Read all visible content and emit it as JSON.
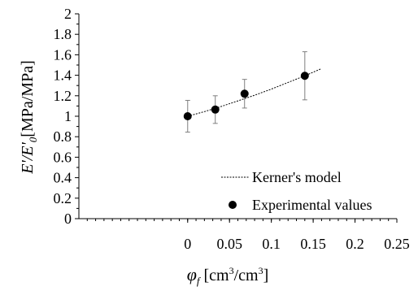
{
  "chart_data": {
    "type": "scatter",
    "x_axis": {
      "range": [
        -0.13,
        0.25
      ],
      "ticks": [
        0,
        0.05,
        0.1,
        0.15,
        0.2,
        0.25
      ],
      "tick_labels": [
        "0",
        "0.05",
        "0.1",
        "0.15",
        "0.2",
        "0.25"
      ],
      "label_symbol": "φ",
      "label_subscript": "f",
      "label_units": " [cm",
      "label_sup1": "3",
      "label_mid": "/cm",
      "label_sup2": "3",
      "label_close": "]"
    },
    "y_axis": {
      "range": [
        0,
        2
      ],
      "ticks": [
        0,
        0.2,
        0.4,
        0.6,
        0.8,
        1,
        1.2,
        1.4,
        1.6,
        1.8,
        2
      ],
      "tick_labels": [
        "0",
        "0.2",
        "0.4",
        "0.6",
        "0.8",
        "1",
        "1.2",
        "1.4",
        "1.6",
        "1.8",
        "2"
      ],
      "label_main": "E'/E'",
      "label_subscript": "0",
      "label_units": "[MPa/MPa]"
    },
    "grid": false,
    "series": [
      {
        "name": "Kerner's model",
        "type": "line",
        "style": "dashed",
        "x": [
          0,
          0.02,
          0.04,
          0.06,
          0.08,
          0.1,
          0.12,
          0.14,
          0.16
        ],
        "y": [
          1.0,
          1.045,
          1.095,
          1.15,
          1.205,
          1.265,
          1.33,
          1.395,
          1.465
        ]
      },
      {
        "name": "Experimental values",
        "type": "scatter",
        "x": [
          0,
          0.033,
          0.068,
          0.14
        ],
        "y": [
          1.0,
          1.065,
          1.22,
          1.395
        ],
        "error": [
          0.155,
          0.135,
          0.14,
          0.235
        ]
      }
    ],
    "legend": {
      "position": "bottom-right",
      "entries": [
        "Kerner's model",
        "Experimental values"
      ]
    },
    "colors": {
      "line": "#000000",
      "markers": "#000000",
      "errorbars": "#7f7f7f"
    }
  }
}
